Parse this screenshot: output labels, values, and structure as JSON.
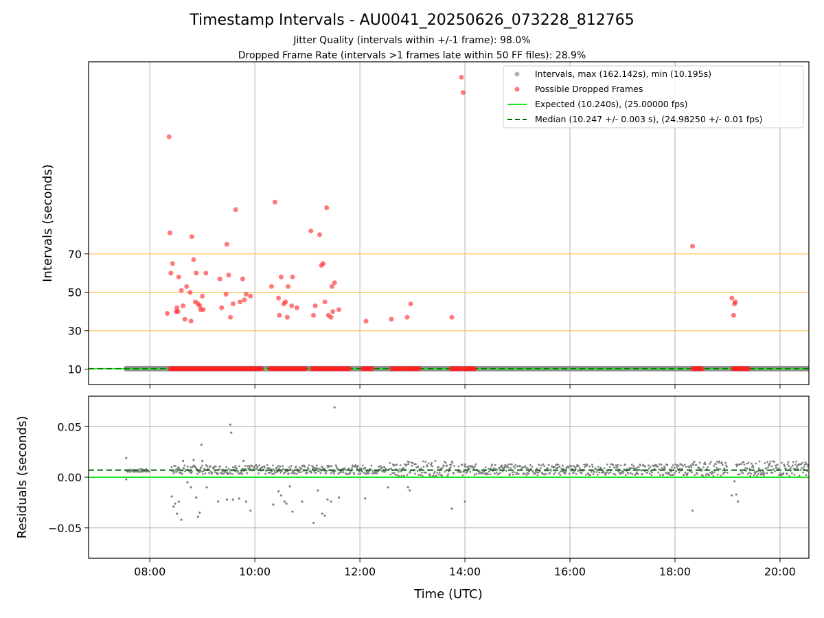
{
  "title": "Timestamp Intervals - AU0041_20250626_073228_812765",
  "subtitle_1": "Jitter Quality (intervals within +/-1 frame): 98.0%",
  "subtitle_2": "Dropped Frame Rate (intervals >1 frames late within 50 FF files): 28.9%",
  "colors": {
    "intervals": "#808080",
    "dropped": "#ff2020",
    "expected": "#1ee81e",
    "median": "#006400",
    "threshold": "#ffc04d",
    "grid": "#b0b0b0"
  },
  "chart_data": [
    {
      "type": "scatter",
      "panel": "top",
      "ylabel": "Intervals (seconds)",
      "xlabel": "",
      "xlim": [
        "06:50",
        "20:33"
      ],
      "ylim": [
        2,
        170
      ],
      "yticks": [
        10,
        30,
        50,
        70
      ],
      "xticks": [
        "08:00",
        "10:00",
        "12:00",
        "14:00",
        "16:00",
        "18:00",
        "20:00"
      ],
      "threshold_lines": [
        30,
        50,
        70
      ],
      "grid": "vertical",
      "legend_placement": "top-right",
      "legend": [
        "Intervals, max (162.142s), min (10.195s)",
        "Possible Dropped Frames",
        "Expected (10.240s), (25.00000 fps)",
        "Median (10.247 +/- 0.003 s), (24.98250 +/- 0.01 fps)"
      ],
      "expected_interval": 10.24,
      "median_interval": 10.247,
      "interval_coverage": [
        [
          "07:33",
          "20:33"
        ]
      ],
      "dropped_frames_baseline_runs": [
        [
          "08:23",
          "10:08"
        ],
        [
          "10:17",
          "10:58"
        ],
        [
          "11:05",
          "11:48"
        ],
        [
          "12:03",
          "12:14"
        ],
        [
          "12:36",
          "12:48"
        ],
        [
          "12:51",
          "13:08"
        ],
        [
          "13:44",
          "13:56"
        ],
        [
          "13:59",
          "14:11"
        ],
        [
          "18:20",
          "18:31"
        ],
        [
          "19:06",
          "19:24"
        ]
      ],
      "dropped_frames_points": [
        {
          "t": "08:20",
          "y": 39
        },
        {
          "t": "08:22",
          "y": 131
        },
        {
          "t": "08:23",
          "y": 81
        },
        {
          "t": "08:24",
          "y": 60
        },
        {
          "t": "08:26",
          "y": 65
        },
        {
          "t": "08:30",
          "y": 40
        },
        {
          "t": "08:31",
          "y": 42
        },
        {
          "t": "08:32",
          "y": 40
        },
        {
          "t": "08:33",
          "y": 58
        },
        {
          "t": "08:36",
          "y": 51
        },
        {
          "t": "08:38",
          "y": 43
        },
        {
          "t": "08:40",
          "y": 36
        },
        {
          "t": "08:42",
          "y": 53
        },
        {
          "t": "08:46",
          "y": 50
        },
        {
          "t": "08:47",
          "y": 35
        },
        {
          "t": "08:48",
          "y": 79
        },
        {
          "t": "08:50",
          "y": 67
        },
        {
          "t": "08:52",
          "y": 45
        },
        {
          "t": "08:53",
          "y": 60
        },
        {
          "t": "08:55",
          "y": 44
        },
        {
          "t": "08:57",
          "y": 43
        },
        {
          "t": "08:58",
          "y": 41
        },
        {
          "t": "09:00",
          "y": 48
        },
        {
          "t": "09:01",
          "y": 41
        },
        {
          "t": "09:04",
          "y": 60
        },
        {
          "t": "09:20",
          "y": 57
        },
        {
          "t": "09:22",
          "y": 42
        },
        {
          "t": "09:27",
          "y": 49
        },
        {
          "t": "09:28",
          "y": 75
        },
        {
          "t": "09:30",
          "y": 59
        },
        {
          "t": "09:32",
          "y": 37
        },
        {
          "t": "09:35",
          "y": 44
        },
        {
          "t": "09:38",
          "y": 93
        },
        {
          "t": "09:43",
          "y": 45
        },
        {
          "t": "09:46",
          "y": 57
        },
        {
          "t": "09:48",
          "y": 46
        },
        {
          "t": "09:50",
          "y": 49
        },
        {
          "t": "09:55",
          "y": 48
        },
        {
          "t": "10:19",
          "y": 53
        },
        {
          "t": "10:23",
          "y": 97
        },
        {
          "t": "10:27",
          "y": 47
        },
        {
          "t": "10:28",
          "y": 38
        },
        {
          "t": "10:30",
          "y": 58
        },
        {
          "t": "10:33",
          "y": 44
        },
        {
          "t": "10:35",
          "y": 45
        },
        {
          "t": "10:37",
          "y": 37
        },
        {
          "t": "10:38",
          "y": 53
        },
        {
          "t": "10:42",
          "y": 43
        },
        {
          "t": "10:43",
          "y": 58
        },
        {
          "t": "10:48",
          "y": 42
        },
        {
          "t": "11:04",
          "y": 82
        },
        {
          "t": "11:07",
          "y": 38
        },
        {
          "t": "11:09",
          "y": 43
        },
        {
          "t": "11:14",
          "y": 80
        },
        {
          "t": "11:16",
          "y": 64
        },
        {
          "t": "11:18",
          "y": 65
        },
        {
          "t": "11:20",
          "y": 45
        },
        {
          "t": "11:22",
          "y": 94
        },
        {
          "t": "11:24",
          "y": 38
        },
        {
          "t": "11:27",
          "y": 37
        },
        {
          "t": "11:28",
          "y": 53
        },
        {
          "t": "11:29",
          "y": 40
        },
        {
          "t": "11:31",
          "y": 55
        },
        {
          "t": "11:36",
          "y": 41
        },
        {
          "t": "12:07",
          "y": 35
        },
        {
          "t": "12:36",
          "y": 36
        },
        {
          "t": "12:54",
          "y": 37
        },
        {
          "t": "12:58",
          "y": 44
        },
        {
          "t": "13:45",
          "y": 37
        },
        {
          "t": "13:56",
          "y": 162
        },
        {
          "t": "13:58",
          "y": 154
        },
        {
          "t": "18:20",
          "y": 74
        },
        {
          "t": "19:05",
          "y": 47
        },
        {
          "t": "19:07",
          "y": 38
        },
        {
          "t": "19:08",
          "y": 44
        },
        {
          "t": "19:09",
          "y": 45
        }
      ]
    },
    {
      "type": "scatter",
      "panel": "bottom",
      "ylabel": "Residuals (seconds)",
      "xlabel": "Time (UTC)",
      "xlim": [
        "06:50",
        "20:33"
      ],
      "ylim": [
        -0.08,
        0.08
      ],
      "yticks": [
        0.05,
        0.0,
        -0.05
      ],
      "ytick_labels": [
        "0.05",
        "0.00",
        "−0.05"
      ],
      "xticks": [
        "08:00",
        "10:00",
        "12:00",
        "14:00",
        "16:00",
        "18:00",
        "20:00"
      ],
      "grid": "both",
      "expected_residual": 0.0,
      "median_residual": 0.007,
      "residual_band_segments": [
        {
          "from": "07:33",
          "to": "08:00",
          "low": 0.005,
          "high": 0.008
        },
        {
          "from": "08:25",
          "to": "12:30",
          "low": 0.003,
          "high": 0.012
        },
        {
          "from": "12:33",
          "to": "13:48",
          "low": 0.001,
          "high": 0.016
        },
        {
          "from": "13:52",
          "to": "18:20",
          "low": 0.002,
          "high": 0.013
        },
        {
          "from": "18:20",
          "to": "19:00",
          "low": 0.001,
          "high": 0.016
        },
        {
          "from": "19:10",
          "to": "20:33",
          "low": 0.001,
          "high": 0.016
        }
      ],
      "residual_outliers": [
        {
          "t": "07:33",
          "y": 0.019
        },
        {
          "t": "07:33",
          "y": -0.002
        },
        {
          "t": "08:25",
          "y": -0.019
        },
        {
          "t": "08:27",
          "y": -0.029
        },
        {
          "t": "08:29",
          "y": -0.026
        },
        {
          "t": "08:31",
          "y": -0.036
        },
        {
          "t": "08:33",
          "y": -0.024
        },
        {
          "t": "08:36",
          "y": -0.042
        },
        {
          "t": "08:38",
          "y": 0.016
        },
        {
          "t": "08:43",
          "y": -0.005
        },
        {
          "t": "08:47",
          "y": -0.01
        },
        {
          "t": "08:50",
          "y": 0.017
        },
        {
          "t": "08:53",
          "y": -0.02
        },
        {
          "t": "08:55",
          "y": -0.039
        },
        {
          "t": "08:57",
          "y": -0.035
        },
        {
          "t": "08:59",
          "y": 0.032
        },
        {
          "t": "09:00",
          "y": 0.016
        },
        {
          "t": "09:05",
          "y": -0.01
        },
        {
          "t": "09:18",
          "y": -0.024
        },
        {
          "t": "09:28",
          "y": -0.022
        },
        {
          "t": "09:32",
          "y": 0.052
        },
        {
          "t": "09:33",
          "y": 0.044
        },
        {
          "t": "09:35",
          "y": -0.022
        },
        {
          "t": "09:42",
          "y": -0.021
        },
        {
          "t": "09:47",
          "y": 0.016
        },
        {
          "t": "09:50",
          "y": -0.024
        },
        {
          "t": "09:55",
          "y": -0.033
        },
        {
          "t": "10:21",
          "y": -0.027
        },
        {
          "t": "10:27",
          "y": -0.014
        },
        {
          "t": "10:30",
          "y": -0.018
        },
        {
          "t": "10:34",
          "y": -0.024
        },
        {
          "t": "10:36",
          "y": -0.026
        },
        {
          "t": "10:40",
          "y": -0.009
        },
        {
          "t": "10:43",
          "y": -0.034
        },
        {
          "t": "10:54",
          "y": -0.024
        },
        {
          "t": "11:07",
          "y": -0.045
        },
        {
          "t": "11:12",
          "y": -0.013
        },
        {
          "t": "11:17",
          "y": -0.036
        },
        {
          "t": "11:20",
          "y": -0.038
        },
        {
          "t": "11:23",
          "y": -0.022
        },
        {
          "t": "11:27",
          "y": -0.024
        },
        {
          "t": "11:31",
          "y": 0.069
        },
        {
          "t": "11:36",
          "y": -0.02
        },
        {
          "t": "12:06",
          "y": -0.021
        },
        {
          "t": "12:32",
          "y": -0.01
        },
        {
          "t": "12:55",
          "y": -0.01
        },
        {
          "t": "12:57",
          "y": -0.013
        },
        {
          "t": "13:45",
          "y": -0.031
        },
        {
          "t": "14:00",
          "y": -0.024
        },
        {
          "t": "18:20",
          "y": -0.033
        },
        {
          "t": "19:05",
          "y": -0.018
        },
        {
          "t": "19:08",
          "y": -0.004
        },
        {
          "t": "19:10",
          "y": -0.017
        },
        {
          "t": "19:12",
          "y": -0.024
        }
      ]
    }
  ]
}
